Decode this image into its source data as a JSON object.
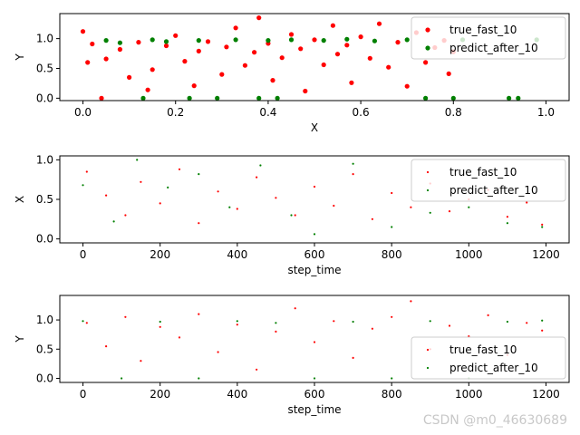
{
  "chart_data": [
    {
      "type": "scatter",
      "xlabel": "X",
      "ylabel": "Y",
      "xlim": [
        -0.05,
        1.05
      ],
      "ylim": [
        -0.04,
        1.42
      ],
      "xticks": [
        "0.0",
        "0.2",
        "0.4",
        "0.6",
        "0.8",
        "1.0"
      ],
      "xtick_values": [
        0.0,
        0.2,
        0.4,
        0.6,
        0.8,
        1.0
      ],
      "yticks": [
        "0.0",
        "0.5",
        "1.0"
      ],
      "ytick_values": [
        0.0,
        0.5,
        1.0
      ],
      "legend_position": "upper-right",
      "series": [
        {
          "name": "true_fast_10",
          "color": "#ff0000",
          "points": [
            [
              0.0,
              1.12
            ],
            [
              0.01,
              0.6
            ],
            [
              0.02,
              0.91
            ],
            [
              0.04,
              0.0
            ],
            [
              0.05,
              0.66
            ],
            [
              0.08,
              0.82
            ],
            [
              0.1,
              0.35
            ],
            [
              0.12,
              0.94
            ],
            [
              0.14,
              0.14
            ],
            [
              0.15,
              0.48
            ],
            [
              0.18,
              0.88
            ],
            [
              0.2,
              1.05
            ],
            [
              0.22,
              0.62
            ],
            [
              0.24,
              0.21
            ],
            [
              0.25,
              0.79
            ],
            [
              0.27,
              0.95
            ],
            [
              0.3,
              0.4
            ],
            [
              0.31,
              0.86
            ],
            [
              0.33,
              1.18
            ],
            [
              0.35,
              0.55
            ],
            [
              0.37,
              0.77
            ],
            [
              0.38,
              1.35
            ],
            [
              0.4,
              0.92
            ],
            [
              0.41,
              0.3
            ],
            [
              0.43,
              0.68
            ],
            [
              0.45,
              1.07
            ],
            [
              0.47,
              0.83
            ],
            [
              0.48,
              0.12
            ],
            [
              0.5,
              0.98
            ],
            [
              0.52,
              0.56
            ],
            [
              0.54,
              1.22
            ],
            [
              0.55,
              0.74
            ],
            [
              0.57,
              0.89
            ],
            [
              0.58,
              0.26
            ],
            [
              0.6,
              1.03
            ],
            [
              0.62,
              0.67
            ],
            [
              0.64,
              1.25
            ],
            [
              0.66,
              0.52
            ],
            [
              0.68,
              0.94
            ],
            [
              0.7,
              0.2
            ],
            [
              0.72,
              1.1
            ],
            [
              0.74,
              0.6
            ],
            [
              0.76,
              0.85
            ],
            [
              0.78,
              0.97
            ],
            [
              0.79,
              0.41
            ],
            [
              0.8,
              0.78
            ]
          ]
        },
        {
          "name": "predict_after_10",
          "color": "#008000",
          "points": [
            [
              0.05,
              0.97
            ],
            [
              0.08,
              0.93
            ],
            [
              0.13,
              0.0
            ],
            [
              0.15,
              0.98
            ],
            [
              0.18,
              0.95
            ],
            [
              0.23,
              0.0
            ],
            [
              0.25,
              0.97
            ],
            [
              0.29,
              0.0
            ],
            [
              0.33,
              0.98
            ],
            [
              0.38,
              0.0
            ],
            [
              0.4,
              0.97
            ],
            [
              0.42,
              0.0
            ],
            [
              0.45,
              0.98
            ],
            [
              0.52,
              0.97
            ],
            [
              0.57,
              0.99
            ],
            [
              0.63,
              0.96
            ],
            [
              0.7,
              0.98
            ],
            [
              0.74,
              0.0
            ],
            [
              0.8,
              0.0
            ],
            [
              0.82,
              0.98
            ],
            [
              0.92,
              0.0
            ],
            [
              0.94,
              0.0
            ],
            [
              0.98,
              0.98
            ]
          ]
        }
      ]
    },
    {
      "type": "scatter",
      "xlabel": "step_time",
      "ylabel": "X",
      "xlim": [
        -60,
        1260
      ],
      "ylim": [
        -0.05,
        1.05
      ],
      "xticks": [
        "0",
        "200",
        "400",
        "600",
        "800",
        "1000",
        "1200"
      ],
      "xtick_values": [
        0,
        200,
        400,
        600,
        800,
        1000,
        1200
      ],
      "yticks": [
        "0.0",
        "0.5",
        "1.0"
      ],
      "ytick_values": [
        0.0,
        0.5,
        1.0
      ],
      "legend_position": "upper-right",
      "series": [
        {
          "name": "true_fast_10",
          "color": "#ff0000",
          "points": [
            [
              10,
              0.85
            ],
            [
              60,
              0.55
            ],
            [
              110,
              0.3
            ],
            [
              150,
              0.72
            ],
            [
              200,
              0.45
            ],
            [
              250,
              0.88
            ],
            [
              300,
              0.2
            ],
            [
              350,
              0.6
            ],
            [
              400,
              0.38
            ],
            [
              450,
              0.78
            ],
            [
              500,
              0.52
            ],
            [
              550,
              0.3
            ],
            [
              600,
              0.66
            ],
            [
              650,
              0.42
            ],
            [
              700,
              0.82
            ],
            [
              750,
              0.25
            ],
            [
              800,
              0.58
            ],
            [
              850,
              0.4
            ],
            [
              900,
              0.7
            ],
            [
              950,
              0.35
            ],
            [
              1000,
              0.5
            ],
            [
              1050,
              0.62
            ],
            [
              1100,
              0.28
            ],
            [
              1150,
              0.46
            ],
            [
              1190,
              0.18
            ]
          ]
        },
        {
          "name": "predict_after_10",
          "color": "#008000",
          "points": [
            [
              0,
              0.68
            ],
            [
              80,
              0.22
            ],
            [
              140,
              1.0
            ],
            [
              220,
              0.65
            ],
            [
              300,
              0.82
            ],
            [
              380,
              0.4
            ],
            [
              460,
              0.93
            ],
            [
              540,
              0.3
            ],
            [
              600,
              0.06
            ],
            [
              700,
              0.95
            ],
            [
              800,
              0.15
            ],
            [
              900,
              0.33
            ],
            [
              1000,
              0.4
            ],
            [
              1100,
              0.2
            ],
            [
              1190,
              0.15
            ]
          ]
        }
      ]
    },
    {
      "type": "scatter",
      "xlabel": "step_time",
      "ylabel": "Y",
      "xlim": [
        -60,
        1260
      ],
      "ylim": [
        -0.07,
        1.42
      ],
      "xticks": [
        "0",
        "200",
        "400",
        "600",
        "800",
        "1000",
        "1200"
      ],
      "xtick_values": [
        0,
        200,
        400,
        600,
        800,
        1000,
        1200
      ],
      "yticks": [
        "0.0",
        "0.5",
        "1.0"
      ],
      "ytick_values": [
        0.0,
        0.5,
        1.0
      ],
      "legend_position": "lower-right",
      "series": [
        {
          "name": "true_fast_10",
          "color": "#ff0000",
          "points": [
            [
              10,
              0.95
            ],
            [
              60,
              0.55
            ],
            [
              110,
              1.05
            ],
            [
              150,
              0.3
            ],
            [
              200,
              0.88
            ],
            [
              250,
              0.7
            ],
            [
              300,
              1.1
            ],
            [
              350,
              0.45
            ],
            [
              400,
              0.92
            ],
            [
              450,
              0.15
            ],
            [
              500,
              0.8
            ],
            [
              550,
              1.2
            ],
            [
              600,
              0.62
            ],
            [
              650,
              0.98
            ],
            [
              700,
              0.35
            ],
            [
              750,
              0.85
            ],
            [
              800,
              1.05
            ],
            [
              850,
              1.32
            ],
            [
              900,
              0.5
            ],
            [
              950,
              0.9
            ],
            [
              1000,
              0.72
            ],
            [
              1050,
              1.08
            ],
            [
              1100,
              0.4
            ],
            [
              1150,
              0.95
            ],
            [
              1190,
              0.82
            ]
          ]
        },
        {
          "name": "predict_after_10",
          "color": "#008000",
          "points": [
            [
              0,
              0.98
            ],
            [
              100,
              0.0
            ],
            [
              200,
              0.97
            ],
            [
              300,
              0.0
            ],
            [
              400,
              0.98
            ],
            [
              500,
              0.95
            ],
            [
              600,
              0.0
            ],
            [
              700,
              0.97
            ],
            [
              800,
              0.0
            ],
            [
              900,
              0.98
            ],
            [
              1000,
              0.0
            ],
            [
              1100,
              0.97
            ],
            [
              1190,
              0.99
            ]
          ]
        }
      ]
    }
  ],
  "watermark": "CSDN @m0_46630689"
}
